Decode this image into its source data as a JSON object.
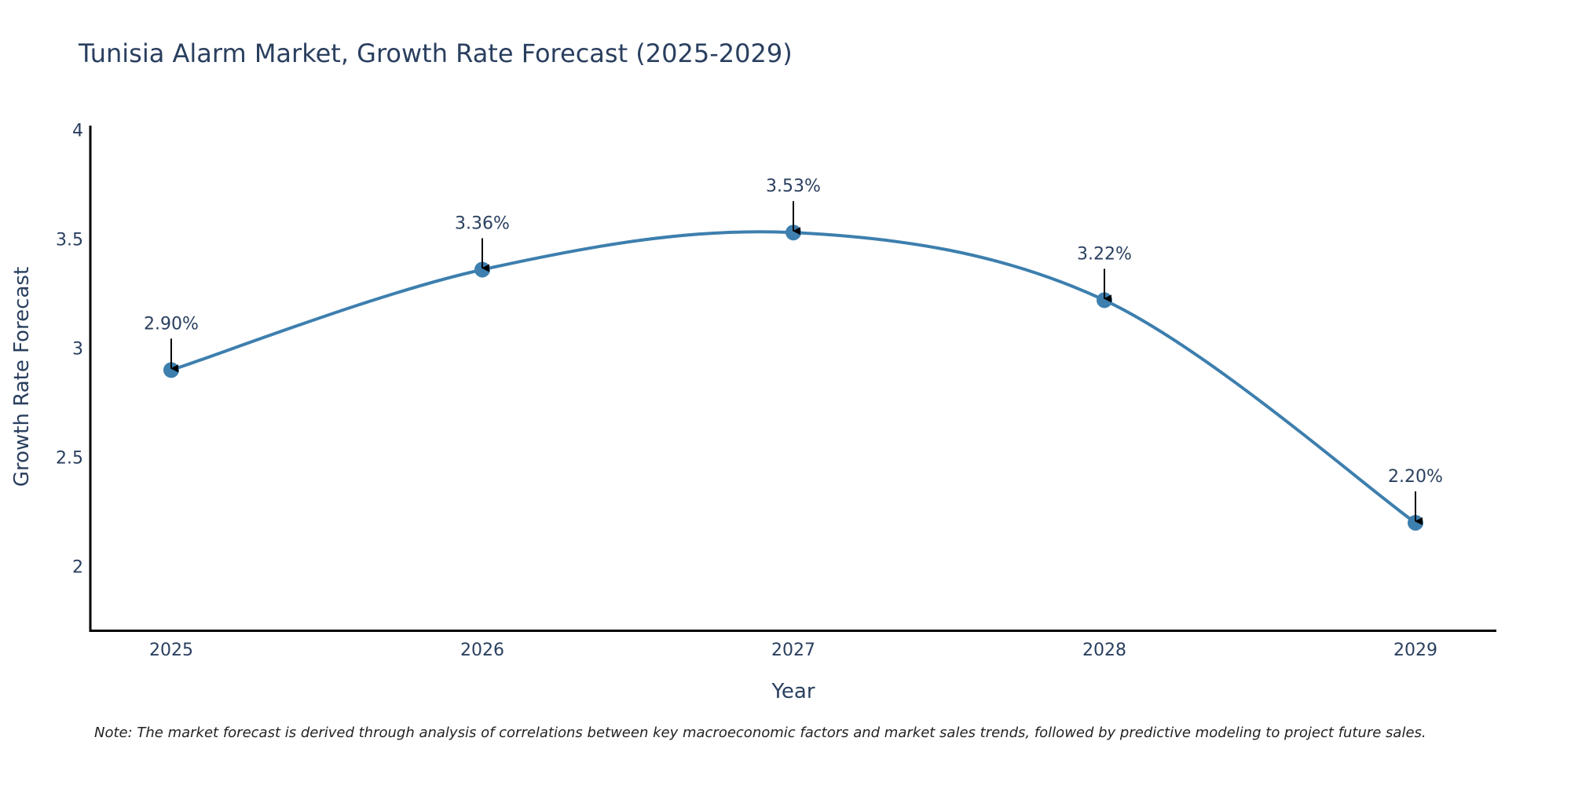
{
  "chart_data": {
    "type": "line",
    "title": "Tunisia Alarm Market, Growth Rate Forecast (2025-2029)",
    "xlabel": "Year",
    "ylabel": "Growth Rate Forecast",
    "categories": [
      "2025",
      "2026",
      "2027",
      "2028",
      "2029"
    ],
    "series": [
      {
        "name": "Growth Rate Forecast",
        "values": [
          2.9,
          3.36,
          3.53,
          3.22,
          2.2
        ],
        "labels": [
          "2.90%",
          "3.36%",
          "3.53%",
          "3.22%",
          "2.20%"
        ],
        "color": "#3d7fae"
      }
    ],
    "yticks": [
      "2",
      "2.5",
      "3",
      "3.5",
      "4"
    ],
    "ylim": [
      1.7,
      4.02
    ],
    "grid": false,
    "note": "Note: The market forecast is derived through analysis of correlations between key macroeconomic factors and market sales trends, followed by predictive modeling to project future sales."
  }
}
